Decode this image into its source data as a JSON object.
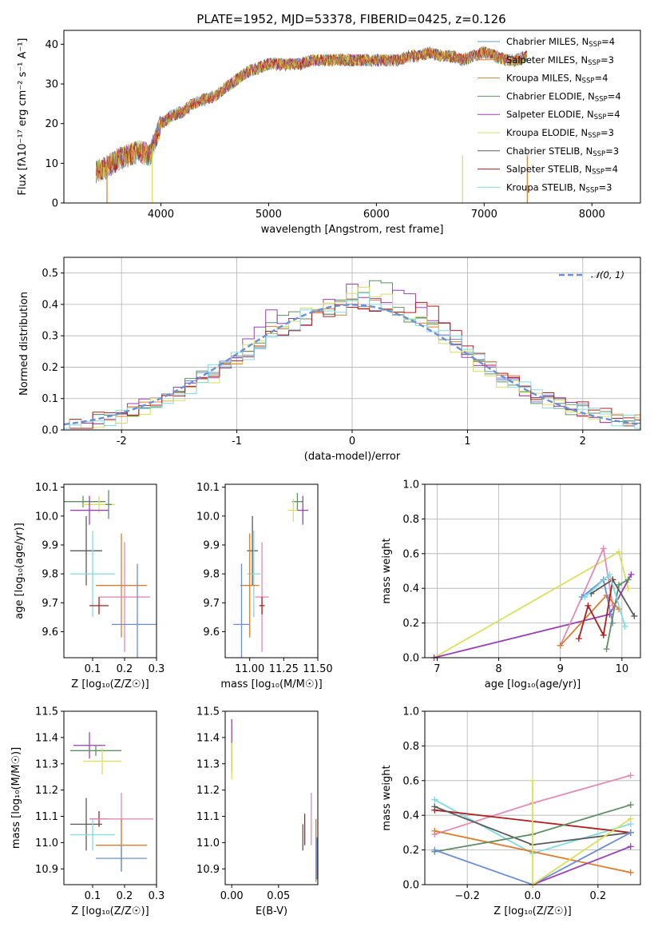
{
  "figure": {
    "title": "PLATE=1952, MJD=53378, FIBERID=0425, z=0.126"
  },
  "colors": {
    "c0": "#6a8fd8",
    "c1": "#e07b2a",
    "c2": "#c68a36",
    "c3": "#5f8f63",
    "c4": "#9a3fb5",
    "c5": "#d8e05a",
    "c6": "#5a5a5a",
    "c7": "#b01e1e",
    "c8": "#7fdbe0",
    "c9": "#e28ab8"
  },
  "chart_data": [
    {
      "id": "spectrum",
      "type": "line",
      "title": "PLATE=1952, MJD=53378, FIBERID=0425, z=0.126",
      "xlabel": "wavelength [Angstrom, rest frame]",
      "ylabel": "Flux [fλ10⁻¹⁷ erg cm⁻² s⁻¹ A⁻¹]",
      "xlim": [
        3100,
        8450
      ],
      "ylim": [
        0,
        43.5
      ],
      "xticks": [
        4000,
        5000,
        6000,
        7000,
        8000
      ],
      "yticks": [
        0,
        10,
        20,
        30,
        40
      ],
      "legend_position": "top-right",
      "x": [
        3400,
        3500,
        3600,
        3700,
        3800,
        3900,
        4000,
        4100,
        4200,
        4300,
        4400,
        4500,
        4600,
        4700,
        4800,
        4900,
        5000,
        5100,
        5200,
        5300,
        5400,
        5500,
        5600,
        5700,
        5800,
        5900,
        6000,
        6100,
        6200,
        6300,
        6400,
        6500,
        6600,
        6700,
        6800,
        6900,
        7000,
        7100,
        7200,
        7300,
        7400
      ],
      "y": [
        8,
        9,
        11,
        12,
        13,
        12,
        20,
        22,
        23,
        25,
        26,
        27,
        29,
        31,
        33,
        34,
        35,
        35,
        35,
        35,
        36,
        36,
        36,
        36,
        36,
        36,
        36,
        36,
        36,
        37,
        37,
        38,
        37,
        37,
        36,
        37,
        38,
        37,
        36,
        36,
        37
      ],
      "series": [
        {
          "name": "Chabrier MILES, N",
          "sub": "SSP",
          "suffix": "=4",
          "color": "#6a8fd8"
        },
        {
          "name": "Salpeter MILES, N",
          "sub": "SSP",
          "suffix": "=3",
          "color": "#e07b2a"
        },
        {
          "name": "Kroupa MILES, N",
          "sub": "SSP",
          "suffix": "=4",
          "color": "#c68a36"
        },
        {
          "name": "Chabrier ELODIE, N",
          "sub": "SSP",
          "suffix": "=4",
          "color": "#5f8f63"
        },
        {
          "name": "Salpeter ELODIE, N",
          "sub": "SSP",
          "suffix": "=4",
          "color": "#9a3fb5"
        },
        {
          "name": "Kroupa ELODIE, N",
          "sub": "SSP",
          "suffix": "=3",
          "color": "#d8e05a"
        },
        {
          "name": "Chabrier STELIB, N",
          "sub": "SSP",
          "suffix": "=3",
          "color": "#5a5a5a"
        },
        {
          "name": "Salpeter STELIB, N",
          "sub": "SSP",
          "suffix": "=4",
          "color": "#b01e1e"
        },
        {
          "name": "Kroupa STELIB, N",
          "sub": "SSP",
          "suffix": "=3",
          "color": "#7fdbe0"
        }
      ]
    },
    {
      "id": "residuals",
      "type": "line",
      "xlabel": "(data-model)/error",
      "ylabel": "Normed distribution",
      "xlim": [
        -2.5,
        2.5
      ],
      "ylim": [
        0,
        0.55
      ],
      "xticks": [
        -2,
        -1,
        0,
        1,
        2
      ],
      "yticks": [
        0.0,
        0.1,
        0.2,
        0.3,
        0.4,
        0.5
      ],
      "grid": true,
      "legend_position": "top-right",
      "reference_curve": {
        "name": "𝒩(0, 1)",
        "color": "#6a8fd8"
      },
      "x": [
        -2.4,
        -2.2,
        -2.0,
        -1.8,
        -1.6,
        -1.4,
        -1.2,
        -1.0,
        -0.8,
        -0.6,
        -0.4,
        -0.2,
        0.0,
        0.2,
        0.4,
        0.6,
        0.8,
        1.0,
        1.2,
        1.4,
        1.6,
        1.8,
        2.0,
        2.2,
        2.4
      ],
      "series": [
        {
          "color": "#6a8fd8",
          "values": [
            0.02,
            0.03,
            0.05,
            0.07,
            0.11,
            0.15,
            0.19,
            0.23,
            0.28,
            0.33,
            0.36,
            0.4,
            0.42,
            0.4,
            0.38,
            0.34,
            0.3,
            0.24,
            0.19,
            0.15,
            0.1,
            0.08,
            0.05,
            0.03,
            0.02
          ]
        },
        {
          "color": "#e07b2a",
          "values": [
            0.02,
            0.03,
            0.05,
            0.08,
            0.1,
            0.14,
            0.2,
            0.22,
            0.3,
            0.33,
            0.35,
            0.38,
            0.4,
            0.42,
            0.37,
            0.36,
            0.31,
            0.25,
            0.2,
            0.14,
            0.11,
            0.07,
            0.05,
            0.04,
            0.03
          ]
        },
        {
          "color": "#5f8f63",
          "values": [
            0.02,
            0.03,
            0.05,
            0.07,
            0.11,
            0.16,
            0.18,
            0.24,
            0.3,
            0.41,
            0.36,
            0.4,
            0.44,
            0.52,
            0.37,
            0.34,
            0.28,
            0.24,
            0.18,
            0.13,
            0.1,
            0.06,
            0.05,
            0.03,
            0.02
          ]
        },
        {
          "color": "#9a3fb5",
          "values": [
            0.02,
            0.03,
            0.06,
            0.09,
            0.12,
            0.15,
            0.19,
            0.25,
            0.37,
            0.33,
            0.35,
            0.42,
            0.45,
            0.41,
            0.48,
            0.39,
            0.3,
            0.24,
            0.18,
            0.14,
            0.11,
            0.08,
            0.05,
            0.04,
            0.02
          ]
        },
        {
          "color": "#d8e05a",
          "values": [
            0.02,
            0.03,
            0.05,
            0.07,
            0.1,
            0.14,
            0.17,
            0.24,
            0.3,
            0.34,
            0.38,
            0.4,
            0.43,
            0.45,
            0.37,
            0.33,
            0.27,
            0.22,
            0.17,
            0.13,
            0.1,
            0.07,
            0.05,
            0.03,
            0.02
          ]
        },
        {
          "color": "#b01e1e",
          "values": [
            0.02,
            0.04,
            0.05,
            0.08,
            0.1,
            0.13,
            0.18,
            0.22,
            0.29,
            0.33,
            0.36,
            0.39,
            0.41,
            0.4,
            0.39,
            0.4,
            0.33,
            0.26,
            0.21,
            0.15,
            0.11,
            0.08,
            0.06,
            0.04,
            0.03
          ]
        },
        {
          "color": "#7fdbe0",
          "values": [
            0.02,
            0.03,
            0.05,
            0.08,
            0.11,
            0.15,
            0.2,
            0.23,
            0.28,
            0.32,
            0.37,
            0.39,
            0.42,
            0.39,
            0.38,
            0.33,
            0.29,
            0.24,
            0.19,
            0.14,
            0.1,
            0.07,
            0.05,
            0.03,
            0.02
          ]
        }
      ]
    },
    {
      "id": "age-vs-z",
      "type": "scatter",
      "xlabel": "Z [log₁₀(Z/Z☉)]",
      "ylabel": "age  [log₁₀(age/yr)]",
      "xlim": [
        0.01,
        0.3
      ],
      "ylim": [
        9.51,
        10.11
      ],
      "xticks": [
        0.1,
        0.2,
        0.3
      ],
      "yticks": [
        9.6,
        9.7,
        9.8,
        9.9,
        10.0,
        10.1
      ],
      "points": [
        {
          "x": 0.07,
          "y": 10.05,
          "ex": 0.07,
          "ey": 0.02,
          "color": "#5f8f63"
        },
        {
          "x": 0.12,
          "y": 10.04,
          "ex": 0.05,
          "ey": 0.03,
          "color": "#d8e05a"
        },
        {
          "x": 0.09,
          "y": 10.02,
          "ex": 0.06,
          "ey": 0.05,
          "color": "#9a3fb5"
        },
        {
          "x": 0.15,
          "y": 10.04,
          "ex": 0.01,
          "ey": 0.05,
          "color": "#5f8f63"
        },
        {
          "x": 0.08,
          "y": 9.88,
          "ex": 0.05,
          "ey": 0.12,
          "color": "#5a5a5a"
        },
        {
          "x": 0.1,
          "y": 9.8,
          "ex": 0.07,
          "ey": 0.15,
          "color": "#7fdbe0"
        },
        {
          "x": 0.19,
          "y": 9.76,
          "ex": 0.08,
          "ey": 0.18,
          "color": "#e07b2a"
        },
        {
          "x": 0.2,
          "y": 9.72,
          "ex": 0.08,
          "ey": 0.19,
          "color": "#e28ab8"
        },
        {
          "x": 0.24,
          "y": 9.625,
          "ex": 0.08,
          "ey": 0.21,
          "color": "#6a8fd8"
        },
        {
          "x": 0.12,
          "y": 9.69,
          "ex": 0.03,
          "ey": 0.03,
          "color": "#b01e1e"
        }
      ]
    },
    {
      "id": "age-vs-mass",
      "type": "scatter",
      "xlabel": "mass [log₁₀(M/M☉)]",
      "xlim": [
        10.82,
        11.5
      ],
      "ylim": [
        9.51,
        10.11
      ],
      "xticks": [
        11.0,
        11.25,
        11.5
      ],
      "yticks": [
        9.6,
        9.7,
        9.8,
        9.9,
        10.0,
        10.1
      ],
      "points": [
        {
          "x": 11.35,
          "y": 10.05,
          "ex": 0.04,
          "ey": 0.03,
          "color": "#5f8f63"
        },
        {
          "x": 11.32,
          "y": 10.02,
          "ex": 0.04,
          "ey": 0.04,
          "color": "#d8e05a"
        },
        {
          "x": 11.39,
          "y": 10.02,
          "ex": 0.04,
          "ey": 0.05,
          "color": "#9a3fb5"
        },
        {
          "x": 11.02,
          "y": 9.88,
          "ex": 0.04,
          "ey": 0.12,
          "color": "#5a5a5a"
        },
        {
          "x": 11.03,
          "y": 9.8,
          "ex": 0.05,
          "ey": 0.15,
          "color": "#7fdbe0"
        },
        {
          "x": 11.0,
          "y": 9.76,
          "ex": 0.07,
          "ey": 0.18,
          "color": "#e07b2a"
        },
        {
          "x": 11.09,
          "y": 9.72,
          "ex": 0.05,
          "ey": 0.19,
          "color": "#e28ab8"
        },
        {
          "x": 10.94,
          "y": 9.625,
          "ex": 0.06,
          "ey": 0.21,
          "color": "#6a8fd8"
        },
        {
          "x": 11.09,
          "y": 9.69,
          "ex": 0.02,
          "ey": 0.03,
          "color": "#b01e1e"
        }
      ]
    },
    {
      "id": "weight-vs-age",
      "type": "line",
      "xlabel": "age  [log₁₀(age/yr)]",
      "ylabel": "mass weight",
      "xlim": [
        6.8,
        10.3
      ],
      "ylim": [
        0,
        1.0
      ],
      "xticks": [
        7,
        8,
        9,
        10
      ],
      "yticks": [
        0.0,
        0.2,
        0.4,
        0.6,
        0.8,
        1.0
      ],
      "grid": true,
      "series": [
        {
          "color": "#d8e05a",
          "x": [
            6.95,
            9.95,
            10.1
          ],
          "y": [
            0.0,
            0.61,
            0.4
          ]
        },
        {
          "color": "#9a3fb5",
          "x": [
            6.95,
            9.8,
            10.15
          ],
          "y": [
            0.0,
            0.25,
            0.48
          ]
        },
        {
          "color": "#e28ab8",
          "x": [
            9.0,
            9.7,
            9.85
          ],
          "y": [
            0.07,
            0.63,
            0.3
          ]
        },
        {
          "color": "#e07b2a",
          "x": [
            9.0,
            9.75,
            9.95
          ],
          "y": [
            0.07,
            0.36,
            0.28
          ]
        },
        {
          "color": "#6a8fd8",
          "x": [
            9.35,
            9.7,
            9.85
          ],
          "y": [
            0.35,
            0.45,
            0.2
          ]
        },
        {
          "color": "#5f8f63",
          "x": [
            9.75,
            9.95,
            10.1
          ],
          "y": [
            0.05,
            0.42,
            0.45
          ]
        },
        {
          "color": "#5a5a5a",
          "x": [
            9.5,
            9.85,
            10.2
          ],
          "y": [
            0.37,
            0.45,
            0.24
          ]
        },
        {
          "color": "#b01e1e",
          "x": [
            9.3,
            9.45,
            9.7,
            9.85
          ],
          "y": [
            0.11,
            0.3,
            0.13,
            0.45
          ]
        },
        {
          "color": "#7fdbe0",
          "x": [
            9.4,
            9.8,
            10.05
          ],
          "y": [
            0.35,
            0.48,
            0.18
          ]
        }
      ]
    },
    {
      "id": "mass-vs-z",
      "type": "scatter",
      "xlabel": "Z [log₁₀(Z/Z☉)]",
      "ylabel": "mass [log₁₀(M/M☉)]",
      "xlim": [
        0.01,
        0.3
      ],
      "ylim": [
        10.84,
        11.5
      ],
      "xticks": [
        0.1,
        0.2,
        0.3
      ],
      "yticks": [
        10.9,
        11.0,
        11.1,
        11.2,
        11.3,
        11.4,
        11.5
      ],
      "points": [
        {
          "x": 0.09,
          "y": 11.37,
          "ex": 0.05,
          "ey": 0.05,
          "color": "#9a3fb5"
        },
        {
          "x": 0.11,
          "y": 11.35,
          "ex": 0.08,
          "ey": 0.02,
          "color": "#5f8f63"
        },
        {
          "x": 0.13,
          "y": 11.31,
          "ex": 0.06,
          "ey": 0.05,
          "color": "#d8e05a"
        },
        {
          "x": 0.12,
          "y": 11.09,
          "ex": 0.03,
          "ey": 0.03,
          "color": "#b01e1e"
        },
        {
          "x": 0.19,
          "y": 11.09,
          "ex": 0.1,
          "ey": 0.1,
          "color": "#e28ab8"
        },
        {
          "x": 0.08,
          "y": 11.07,
          "ex": 0.05,
          "ey": 0.1,
          "color": "#5a5a5a"
        },
        {
          "x": 0.1,
          "y": 11.03,
          "ex": 0.07,
          "ey": 0.06,
          "color": "#7fdbe0"
        },
        {
          "x": 0.19,
          "y": 10.99,
          "ex": 0.08,
          "ey": 0.1,
          "color": "#e07b2a"
        },
        {
          "x": 0.19,
          "y": 10.94,
          "ex": 0.08,
          "ey": 0.05,
          "color": "#6a8fd8"
        }
      ]
    },
    {
      "id": "mass-vs-ebv",
      "type": "scatter",
      "xlabel": "E(B-V)",
      "xlim": [
        -0.007,
        0.092
      ],
      "ylim": [
        10.84,
        11.5
      ],
      "xticks": [
        0.0,
        0.05
      ],
      "yticks": [
        10.9,
        11.0,
        11.1,
        11.2,
        11.3,
        11.4,
        11.5
      ],
      "points": [
        {
          "x": 0.0,
          "y": 11.37,
          "ex": 0.0,
          "ey": 0.1,
          "color": "#9a3fb5"
        },
        {
          "x": 0.0,
          "y": 11.31,
          "ex": 0.0,
          "ey": 0.07,
          "color": "#d8e05a"
        },
        {
          "x": 0.076,
          "y": 11.02,
          "ex": 0.0,
          "ey": 0.05,
          "color": "#5a5a5a"
        },
        {
          "x": 0.078,
          "y": 11.05,
          "ex": 0.0,
          "ey": 0.06,
          "color": "#b01e1e"
        },
        {
          "x": 0.085,
          "y": 11.09,
          "ex": 0.0,
          "ey": 0.1,
          "color": "#e28ab8"
        },
        {
          "x": 0.09,
          "y": 10.97,
          "ex": 0.0,
          "ey": 0.12,
          "color": "#e07b2a"
        },
        {
          "x": 0.091,
          "y": 10.94,
          "ex": 0.0,
          "ey": 0.08,
          "color": "#6a8fd8"
        }
      ]
    },
    {
      "id": "weight-vs-z",
      "type": "line",
      "xlabel": "Z [log₁₀(Z/Z☉)]",
      "ylabel": "mass weight",
      "xlim": [
        -0.33,
        0.33
      ],
      "ylim": [
        0,
        1.0
      ],
      "xticks": [
        -0.2,
        0.0,
        0.2
      ],
      "yticks": [
        0.0,
        0.2,
        0.4,
        0.6,
        0.8,
        1.0
      ],
      "grid": true,
      "series": [
        {
          "color": "#e28ab8",
          "x": [
            -0.3,
            0.0,
            0.3
          ],
          "y": [
            0.29,
            0.47,
            0.63
          ]
        },
        {
          "color": "#7fdbe0",
          "x": [
            -0.3,
            0.0,
            0.3
          ],
          "y": [
            0.49,
            0.18,
            0.35
          ]
        },
        {
          "color": "#b01e1e",
          "x": [
            -0.3,
            0.3
          ],
          "y": [
            0.43,
            0.3
          ]
        },
        {
          "color": "#5a5a5a",
          "x": [
            -0.3,
            0.0,
            0.3
          ],
          "y": [
            0.45,
            0.23,
            0.3
          ]
        },
        {
          "color": "#e07b2a",
          "x": [
            -0.3,
            0.3
          ],
          "y": [
            0.31,
            0.07
          ]
        },
        {
          "color": "#5f8f63",
          "x": [
            -0.3,
            0.0,
            0.3
          ],
          "y": [
            0.19,
            0.29,
            0.46
          ]
        },
        {
          "color": "#6a8fd8",
          "x": [
            -0.3,
            0.0,
            0.3
          ],
          "y": [
            0.2,
            0.0,
            0.3
          ]
        },
        {
          "color": "#9a3fb5",
          "x": [
            0.0,
            0.3
          ],
          "y": [
            0.0,
            0.22
          ]
        },
        {
          "color": "#d8e05a",
          "x": [
            0.0,
            0.0,
            0.3
          ],
          "y": [
            0.6,
            0.0,
            0.38
          ]
        }
      ]
    }
  ]
}
